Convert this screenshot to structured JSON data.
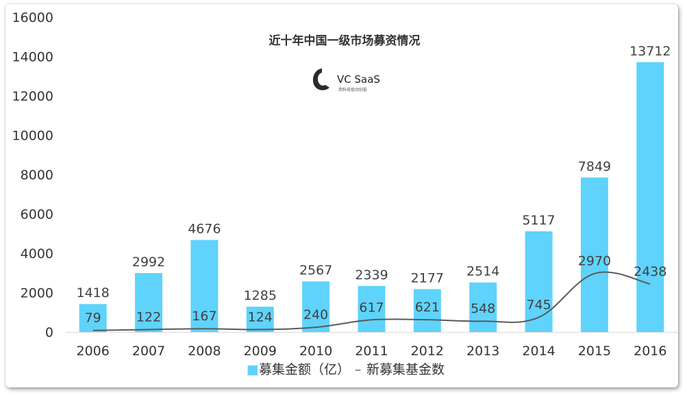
{
  "chart_data": {
    "type": "bar",
    "title": "近十年中国一级市场募资情况",
    "categories": [
      "2006",
      "2007",
      "2008",
      "2009",
      "2010",
      "2011",
      "2012",
      "2013",
      "2014",
      "2015",
      "2016"
    ],
    "ylim": [
      0,
      16000
    ],
    "yticks": [
      "0",
      "2000",
      "4000",
      "6000",
      "8000",
      "10000",
      "12000",
      "14000",
      "16000"
    ],
    "grid": false,
    "legend_position": "bottom",
    "series": [
      {
        "name": "募集金额（亿）",
        "type": "bar",
        "color": "#5fd3fb",
        "values": [
          1418,
          2992,
          4676,
          1285,
          2567,
          2339,
          2177,
          2514,
          5117,
          7849,
          13712
        ]
      },
      {
        "name": "新募集基金数",
        "type": "line",
        "color": "#595959",
        "values": [
          79,
          122,
          167,
          124,
          240,
          617,
          621,
          548,
          745,
          2970,
          2438
        ]
      }
    ],
    "legend": {
      "bar_marker": "■",
      "line_marker": "–"
    }
  },
  "logo": {
    "icon": "vc-saas-logo-icon",
    "name": "VC SaaS",
    "tagline": "用科技驱动创投"
  }
}
